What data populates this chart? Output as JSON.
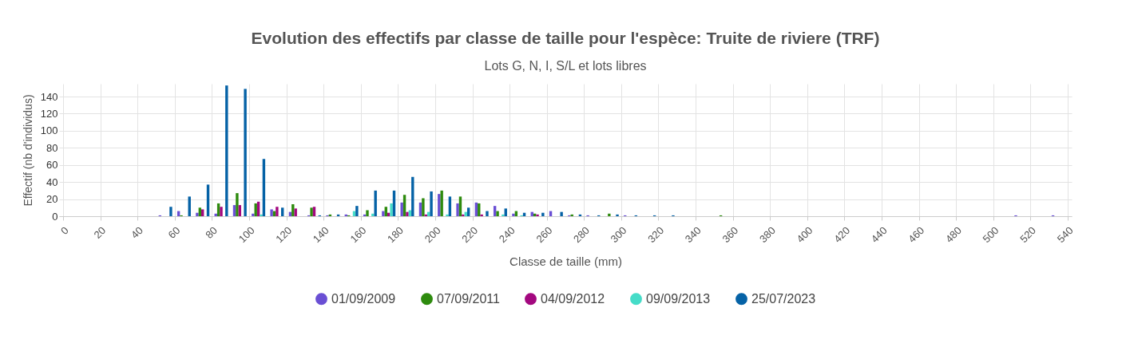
{
  "chart_data": {
    "type": "bar",
    "title": "Evolution des effectifs par classe de taille pour l'espèce: Truite de riviere (TRF)",
    "subtitle": "Lots G, N, I, S/L et lots libres",
    "xlabel": "Classe de taille (mm)",
    "ylabel": "Effectif (nb d'individus)",
    "x": [
      55,
      65,
      75,
      85,
      95,
      105,
      115,
      125,
      135,
      145,
      155,
      165,
      175,
      185,
      195,
      205,
      215,
      225,
      235,
      245,
      255,
      265,
      275,
      285,
      295,
      305,
      315,
      325,
      355,
      515,
      535
    ],
    "xlim": [
      0,
      540
    ],
    "xticks": [
      0,
      20,
      40,
      60,
      80,
      100,
      120,
      140,
      160,
      180,
      200,
      220,
      240,
      260,
      280,
      300,
      320,
      340,
      360,
      380,
      400,
      420,
      440,
      460,
      480,
      500,
      520,
      540
    ],
    "ylim": [
      0,
      155
    ],
    "yticks": [
      0,
      20,
      40,
      60,
      80,
      100,
      120,
      140
    ],
    "grid": true,
    "legend": "bottom",
    "series": [
      {
        "name": "01/09/2009",
        "color": "#6a4fd4",
        "values": [
          1,
          6,
          4,
          3,
          13,
          3,
          8,
          5,
          1,
          1,
          2,
          2,
          6,
          16,
          16,
          26,
          15,
          16,
          12,
          3,
          5,
          6,
          1,
          1,
          null,
          1,
          null,
          null,
          null,
          1,
          1
        ]
      },
      {
        "name": "07/09/2011",
        "color": "#2e8b0e",
        "values": [
          null,
          1,
          10,
          15,
          27,
          15,
          6,
          14,
          10,
          2,
          1,
          7,
          11,
          25,
          21,
          30,
          23,
          15,
          6,
          6,
          3,
          null,
          2,
          null,
          3,
          null,
          null,
          null,
          1,
          null,
          null
        ]
      },
      {
        "name": "04/09/2012",
        "color": "#a3087f",
        "values": [
          null,
          null,
          8,
          11,
          13,
          17,
          11,
          9,
          11,
          null,
          null,
          null,
          4,
          5,
          2,
          null,
          2,
          2,
          null,
          null,
          2,
          null,
          null,
          null,
          null,
          null,
          null,
          null,
          null,
          null,
          null
        ]
      },
      {
        "name": "09/09/2013",
        "color": "#45dcc8",
        "values": [
          null,
          null,
          null,
          null,
          null,
          2,
          null,
          null,
          null,
          null,
          6,
          3,
          15,
          7,
          5,
          2,
          5,
          null,
          2,
          1,
          null,
          null,
          null,
          null,
          null,
          null,
          null,
          null,
          null,
          null,
          null
        ]
      },
      {
        "name": "25/07/2023",
        "color": "#0562a6",
        "values": [
          11,
          23,
          37,
          153,
          149,
          67,
          10,
          null,
          1,
          2,
          12,
          30,
          30,
          46,
          29,
          23,
          10,
          6,
          9,
          4,
          4,
          5,
          2,
          1,
          2,
          1,
          1,
          1,
          null,
          null,
          null
        ]
      }
    ]
  }
}
